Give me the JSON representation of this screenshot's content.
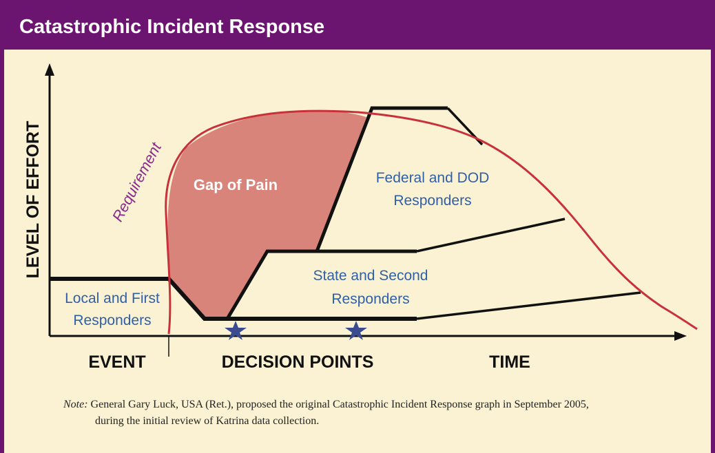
{
  "header": {
    "title": "Catastrophic Incident Response"
  },
  "axes": {
    "y_label": "LEVEL OF EFFORT"
  },
  "regions": {
    "requirement": "Requirement",
    "gap": "Gap of Pain",
    "federal": [
      "Federal and DOD",
      "Responders"
    ],
    "state": [
      "State and Second",
      "Responders"
    ],
    "local": [
      "Local and First",
      "Responders"
    ]
  },
  "x_labels": [
    "EVENT",
    "DECISION POINTS",
    "TIME"
  ],
  "note": {
    "prefix": "Note:",
    "lines": [
      "General Gary Luck, USA (Ret.), proposed the original Catastrophic Incident Response graph in September 2005,",
      "during the initial review of Katrina data collection."
    ]
  }
}
